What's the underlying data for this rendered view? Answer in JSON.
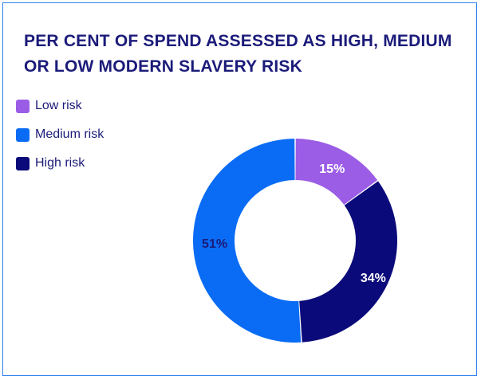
{
  "title": "PER CENT OF SPEND ASSESSED AS HIGH, MEDIUM OR LOW MODERN SLAVERY RISK",
  "chart_data": {
    "type": "pie",
    "variant": "donut",
    "title": "PER CENT OF SPEND ASSESSED AS HIGH, MEDIUM OR LOW MODERN SLAVERY RISK",
    "categories": [
      "Low risk",
      "High risk",
      "Medium risk"
    ],
    "values": [
      15,
      34,
      51
    ],
    "labels": [
      "15%",
      "34%",
      "51%"
    ],
    "colors": [
      "#9b5de5",
      "#0a0a7a",
      "#0a6cf5"
    ],
    "label_colors": [
      "#ffffff",
      "#ffffff",
      "#1b1b7a"
    ],
    "legend": [
      {
        "label": "Low risk",
        "color": "#9b5de5"
      },
      {
        "label": "Medium risk",
        "color": "#0a6cf5"
      },
      {
        "label": "High risk",
        "color": "#0a0a7a"
      }
    ],
    "legend_position": "top-left"
  }
}
